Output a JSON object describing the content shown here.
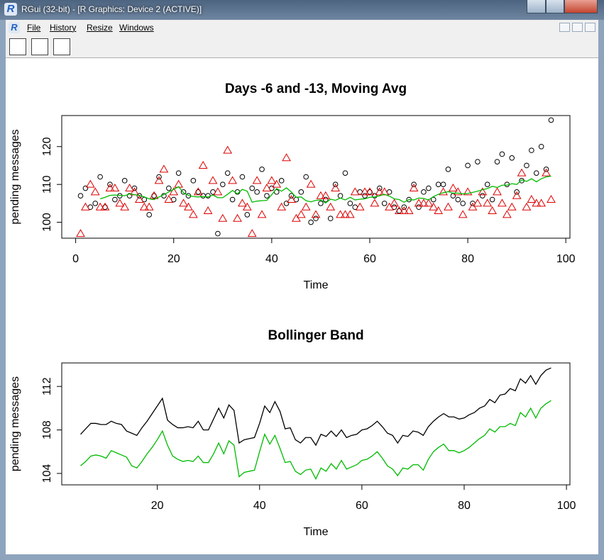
{
  "window": {
    "title": "RGui (32-bit) - [R Graphics: Device 2 (ACTIVE)]"
  },
  "menu": [
    "File",
    "History",
    "Resize",
    "Windows"
  ],
  "chart_data": [
    {
      "type": "scatter",
      "title": "Days -6 and -13,  Moving Avg",
      "xlabel": "Time",
      "ylabel": "pending messages",
      "xlim": [
        -2.84,
        100.84
      ],
      "ylim": [
        95.8,
        128.2
      ],
      "xticks": [
        0,
        20,
        40,
        60,
        80,
        100
      ],
      "yticks": [
        100,
        110,
        120
      ],
      "series": [
        {
          "marker": "circle",
          "color": "#000000",
          "x": [
            1,
            2,
            3,
            4,
            5,
            6,
            7,
            8,
            9,
            10,
            11,
            12,
            13,
            14,
            15,
            16,
            17,
            18,
            19,
            20,
            21,
            22,
            23,
            24,
            25,
            26,
            27,
            28,
            29,
            30,
            31,
            32,
            33,
            34,
            35,
            36,
            37,
            38,
            39,
            40,
            41,
            42,
            43,
            44,
            45,
            46,
            47,
            48,
            49,
            50,
            51,
            52,
            53,
            54,
            55,
            56,
            57,
            58,
            59,
            60,
            61,
            62,
            63,
            64,
            65,
            66,
            67,
            68,
            69,
            70,
            71,
            72,
            73,
            74,
            75,
            76,
            77,
            78,
            79,
            80,
            81,
            82,
            83,
            84,
            85,
            86,
            87,
            88,
            89,
            90,
            91,
            92,
            93,
            94,
            95,
            96,
            97
          ],
          "values": [
            107,
            109,
            104,
            105,
            112,
            104,
            110,
            106,
            107,
            111,
            107,
            109,
            107,
            106,
            102,
            107,
            112,
            107,
            109,
            106,
            113,
            108,
            107,
            111,
            108,
            107,
            107,
            108,
            97,
            110,
            113,
            106,
            108,
            112,
            102,
            109,
            108,
            114,
            107,
            109,
            108,
            111,
            105,
            107,
            106,
            108,
            112,
            100,
            101,
            105,
            106,
            101,
            110,
            107,
            113,
            105,
            104,
            108,
            107,
            108,
            107,
            109,
            105,
            108,
            104,
            103,
            104,
            106,
            110,
            104,
            108,
            109,
            106,
            110,
            110,
            114,
            107,
            106,
            105,
            115,
            105,
            116,
            107,
            110,
            106,
            116,
            118,
            110,
            117,
            108,
            111,
            115,
            119,
            113,
            120,
            114,
            127
          ]
        },
        {
          "marker": "triangle",
          "color": "#dd0000",
          "x": [
            1,
            2,
            3,
            4,
            5,
            6,
            7,
            8,
            9,
            10,
            11,
            12,
            13,
            14,
            15,
            16,
            17,
            18,
            19,
            20,
            21,
            22,
            23,
            24,
            25,
            26,
            27,
            28,
            29,
            30,
            31,
            32,
            33,
            34,
            35,
            36,
            37,
            38,
            39,
            40,
            41,
            42,
            43,
            44,
            45,
            46,
            47,
            48,
            49,
            50,
            51,
            52,
            53,
            54,
            55,
            56,
            57,
            58,
            59,
            60,
            61,
            62,
            63,
            64,
            65,
            66,
            67,
            68,
            69,
            70,
            71,
            72,
            73,
            74,
            75,
            76,
            77,
            78,
            79,
            80,
            81,
            82,
            83,
            84,
            85,
            86,
            87,
            88,
            89,
            90,
            91,
            92,
            93,
            94,
            95,
            96,
            97
          ],
          "values": [
            97,
            104,
            110,
            108,
            104,
            104,
            109,
            109,
            105,
            104,
            109,
            108,
            106,
            104,
            104,
            107,
            111,
            114,
            106,
            108,
            110,
            105,
            104,
            102,
            108,
            115,
            103,
            111,
            108,
            101,
            119,
            111,
            101,
            105,
            104,
            97,
            111,
            102,
            109,
            111,
            110,
            104,
            117,
            106,
            101,
            102,
            104,
            110,
            102,
            107,
            107,
            104,
            109,
            102,
            102,
            102,
            108,
            104,
            108,
            108,
            105,
            108,
            108,
            104,
            105,
            103,
            103,
            103,
            109,
            105,
            105,
            105,
            104,
            103,
            108,
            104,
            109,
            108,
            102,
            108,
            104,
            105,
            108,
            105,
            103,
            108,
            105,
            102,
            104,
            107,
            113,
            104,
            106,
            105,
            105,
            113,
            106
          ]
        },
        {
          "line": true,
          "color": "#00bb00",
          "x": [
            5,
            6,
            7,
            8,
            9,
            10,
            11,
            12,
            13,
            14,
            15,
            16,
            17,
            18,
            19,
            20,
            21,
            22,
            23,
            24,
            25,
            26,
            27,
            28,
            29,
            30,
            31,
            32,
            33,
            34,
            35,
            36,
            37,
            38,
            39,
            40,
            41,
            42,
            43,
            44,
            45,
            46,
            47,
            48,
            49,
            50,
            51,
            52,
            53,
            54,
            55,
            56,
            57,
            58,
            59,
            60,
            61,
            62,
            63,
            64,
            65,
            66,
            67,
            68,
            69,
            70,
            71,
            72,
            73,
            74,
            75,
            76,
            77,
            78,
            79,
            80,
            81,
            82,
            83,
            84,
            85,
            86,
            87,
            88,
            89,
            90,
            91,
            92,
            93,
            94,
            95,
            96,
            97
          ],
          "values": [
            106.2,
            106.6,
            107.1,
            107.2,
            107.1,
            107.0,
            107.5,
            107.3,
            107.1,
            106.7,
            106.2,
            106.0,
            106.7,
            107.3,
            108.0,
            108.7,
            109.4,
            107.8,
            107.1,
            106.8,
            106.7,
            106.8,
            106.7,
            107.2,
            106.5,
            106.5,
            107.4,
            108.4,
            107.5,
            108.7,
            108.2,
            105.3,
            105.6,
            105.7,
            105.8,
            107.3,
            108.9,
            108.2,
            109.1,
            108.0,
            106.6,
            106.7,
            105.7,
            105.4,
            105.8,
            105.9,
            105.1,
            106.1,
            105.8,
            106.4,
            105.9,
            106.6,
            105.9,
            106.1,
            106.2,
            106.6,
            106.7,
            107.0,
            107.4,
            106.9,
            106.2,
            106.0,
            105.3,
            106.0,
            105.9,
            106.4,
            106.3,
            105.9,
            106.8,
            107.4,
            107.8,
            108.1,
            107.7,
            107.7,
            107.5,
            107.6,
            107.9,
            108.2,
            108.6,
            108.9,
            109.5,
            109.2,
            109.8,
            109.8,
            110.2,
            110.0,
            111.2,
            110.8,
            111.5,
            110.7,
            111.5,
            112.0,
            112.2
          ]
        }
      ]
    },
    {
      "type": "line",
      "title": "Bollinger Band",
      "xlabel": "Time",
      "ylabel": "pending messages",
      "xlim": [
        1.32,
        100.68
      ],
      "ylim": [
        102.95,
        114.16
      ],
      "xticks": [
        20,
        40,
        60,
        80,
        100
      ],
      "yticks": [
        104,
        108,
        112
      ],
      "series": [
        {
          "line": true,
          "color": "#000000",
          "x": [
            5,
            6,
            7,
            8,
            9,
            10,
            11,
            12,
            13,
            14,
            15,
            16,
            17,
            18,
            19,
            20,
            21,
            22,
            23,
            24,
            25,
            26,
            27,
            28,
            29,
            30,
            31,
            32,
            33,
            34,
            35,
            36,
            37,
            38,
            39,
            40,
            41,
            42,
            43,
            44,
            45,
            46,
            47,
            48,
            49,
            50,
            51,
            52,
            53,
            54,
            55,
            56,
            57,
            58,
            59,
            60,
            61,
            62,
            63,
            64,
            65,
            66,
            67,
            68,
            69,
            70,
            71,
            72,
            73,
            74,
            75,
            76,
            77,
            78,
            79,
            80,
            81,
            82,
            83,
            84,
            85,
            86,
            87,
            88,
            89,
            90,
            91,
            92,
            93,
            94,
            95,
            96,
            97
          ],
          "values": [
            107.6,
            108.1,
            108.6,
            108.6,
            108.5,
            108.5,
            108.8,
            108.6,
            108.5,
            107.9,
            107.7,
            107.5,
            108.2,
            108.8,
            109.5,
            110.2,
            110.9,
            108.9,
            108.5,
            108.2,
            108.2,
            108.3,
            108.2,
            108.8,
            108.0,
            108.0,
            109.0,
            110.0,
            109.1,
            110.3,
            109.8,
            106.8,
            107.1,
            107.2,
            107.3,
            108.6,
            110.2,
            109.6,
            110.6,
            109.7,
            108.1,
            108.2,
            107.1,
            106.8,
            107.3,
            107.3,
            106.6,
            107.6,
            107.4,
            107.9,
            107.4,
            108.0,
            107.3,
            107.5,
            107.6,
            108.0,
            108.1,
            108.4,
            108.8,
            108.3,
            107.7,
            107.5,
            106.8,
            107.5,
            107.4,
            107.9,
            107.8,
            107.5,
            108.3,
            108.8,
            109.2,
            109.5,
            109.2,
            109.2,
            109.0,
            109.1,
            109.4,
            109.6,
            110.0,
            110.2,
            110.8,
            110.5,
            111.2,
            111.3,
            111.8,
            111.6,
            112.7,
            112.3,
            113.0,
            112.2,
            113.0,
            113.5,
            113.7
          ]
        },
        {
          "line": true,
          "color": "#00bb00",
          "x": [
            5,
            6,
            7,
            8,
            9,
            10,
            11,
            12,
            13,
            14,
            15,
            16,
            17,
            18,
            19,
            20,
            21,
            22,
            23,
            24,
            25,
            26,
            27,
            28,
            29,
            30,
            31,
            32,
            33,
            34,
            35,
            36,
            37,
            38,
            39,
            40,
            41,
            42,
            43,
            44,
            45,
            46,
            47,
            48,
            49,
            50,
            51,
            52,
            53,
            54,
            55,
            56,
            57,
            58,
            59,
            60,
            61,
            62,
            63,
            64,
            65,
            66,
            67,
            68,
            69,
            70,
            71,
            72,
            73,
            74,
            75,
            76,
            77,
            78,
            79,
            80,
            81,
            82,
            83,
            84,
            85,
            86,
            87,
            88,
            89,
            90,
            91,
            92,
            93,
            94,
            95,
            96,
            97
          ],
          "values": [
            104.7,
            105.1,
            105.6,
            105.7,
            105.6,
            105.4,
            106.1,
            105.9,
            105.7,
            105.5,
            104.7,
            104.5,
            105.1,
            105.8,
            106.4,
            107.1,
            107.9,
            106.6,
            105.6,
            105.3,
            105.1,
            105.2,
            105.1,
            105.6,
            105.0,
            105.0,
            105.8,
            106.8,
            105.8,
            107.0,
            106.6,
            103.7,
            104.1,
            104.2,
            104.3,
            106.0,
            107.6,
            106.7,
            107.5,
            106.3,
            105.0,
            105.1,
            104.2,
            103.9,
            104.3,
            104.4,
            103.5,
            104.5,
            104.2,
            104.9,
            104.4,
            105.2,
            104.4,
            104.6,
            104.8,
            105.2,
            105.3,
            105.6,
            106.0,
            105.4,
            104.7,
            104.4,
            103.8,
            104.5,
            104.4,
            104.8,
            104.8,
            104.3,
            105.3,
            106.0,
            106.4,
            106.7,
            106.1,
            106.1,
            105.9,
            106.1,
            106.4,
            106.8,
            107.2,
            107.5,
            108.1,
            107.8,
            108.3,
            108.3,
            108.6,
            108.4,
            109.6,
            109.2,
            110.0,
            109.1,
            110.0,
            110.4,
            110.7
          ]
        }
      ]
    }
  ]
}
